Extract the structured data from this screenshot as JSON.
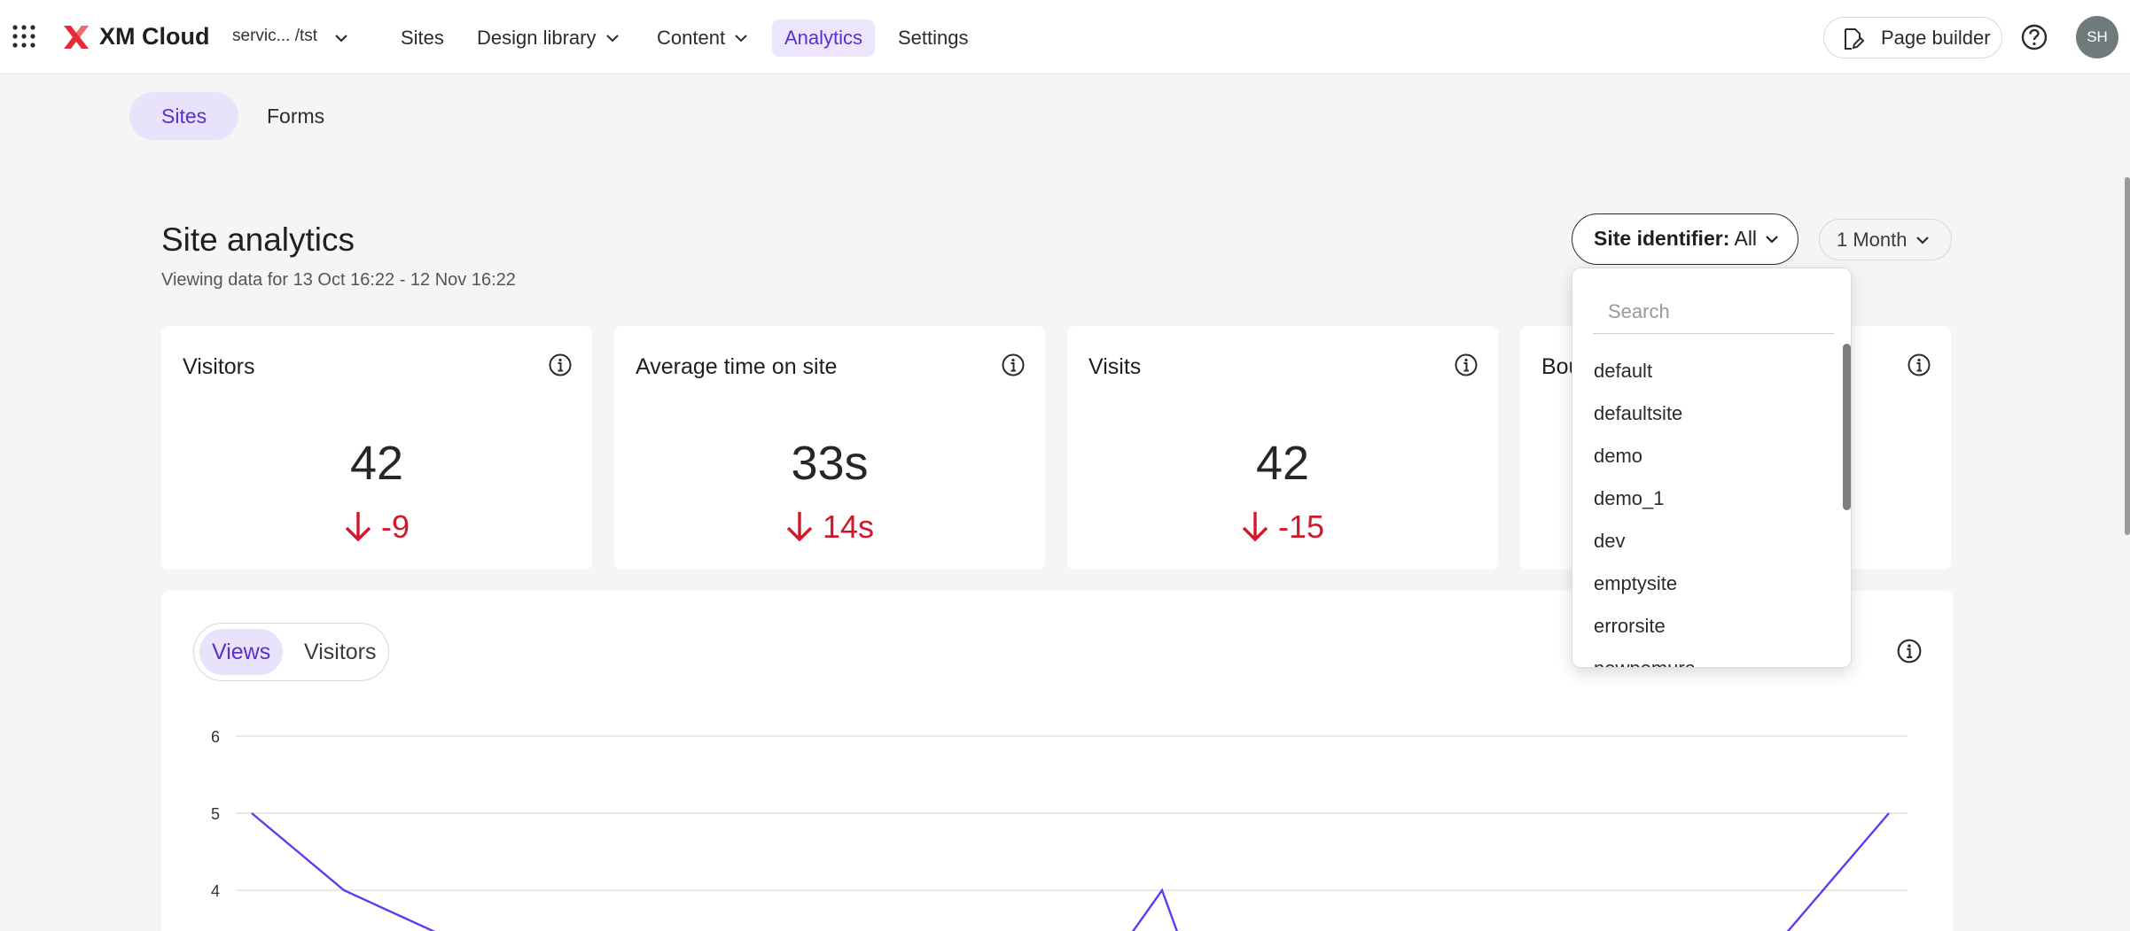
{
  "topbar": {
    "brand": "XM Cloud",
    "environment": "servic...  /tst",
    "nav": [
      {
        "label": "Sites",
        "has_menu": false,
        "active": false
      },
      {
        "label": "Design library",
        "has_menu": true,
        "active": false
      },
      {
        "label": "Content",
        "has_menu": true,
        "active": false
      },
      {
        "label": "Analytics",
        "has_menu": false,
        "active": true
      },
      {
        "label": "Settings",
        "has_menu": false,
        "active": false
      }
    ],
    "page_builder_label": "Page builder",
    "avatar_initials": "SH"
  },
  "subtabs": [
    {
      "label": "Sites",
      "active": true
    },
    {
      "label": "Forms",
      "active": false
    }
  ],
  "header": {
    "title": "Site analytics",
    "subtitle": "Viewing data for 13 Oct 16:22 - 12 Nov 16:22",
    "site_identifier_key": "Site identifier:",
    "site_identifier_value": "All",
    "period_label": "1 Month"
  },
  "cards": [
    {
      "title": "Visitors",
      "value": "42",
      "delta": "-9"
    },
    {
      "title": "Average time on site",
      "value": "33s",
      "delta": "14s"
    },
    {
      "title": "Visits",
      "value": "42",
      "delta": "-15"
    },
    {
      "title": "Bou",
      "value": "",
      "delta": ""
    }
  ],
  "chart": {
    "toggle": [
      {
        "label": "Views",
        "active": true
      },
      {
        "label": "Visitors",
        "active": false
      }
    ]
  },
  "chart_data": {
    "type": "line",
    "series": [
      {
        "values": [
          5,
          4,
          3.4,
          3.4,
          3.4,
          3.4,
          3.4,
          3.4,
          3.4,
          3.4,
          3.4,
          3.4,
          3.4,
          3.4,
          4,
          3.4,
          3.4,
          3.4,
          3.4,
          3.4,
          3.4,
          3.4,
          3.4,
          5
        ]
      }
    ],
    "y_ticks": [
      "6",
      "5",
      "4"
    ],
    "ylim": [
      3.4,
      6
    ],
    "grid": true,
    "line_color": "#6438f0"
  },
  "dropdown": {
    "search_placeholder": "Search",
    "items": [
      "default",
      "defaultsite",
      "demo",
      "demo_1",
      "dev",
      "emptysite",
      "errorsite",
      "newnomura"
    ]
  },
  "colors": {
    "accent": "#5a2ecf",
    "accent_bg": "#e8e3fa",
    "negative": "#d3182c"
  }
}
